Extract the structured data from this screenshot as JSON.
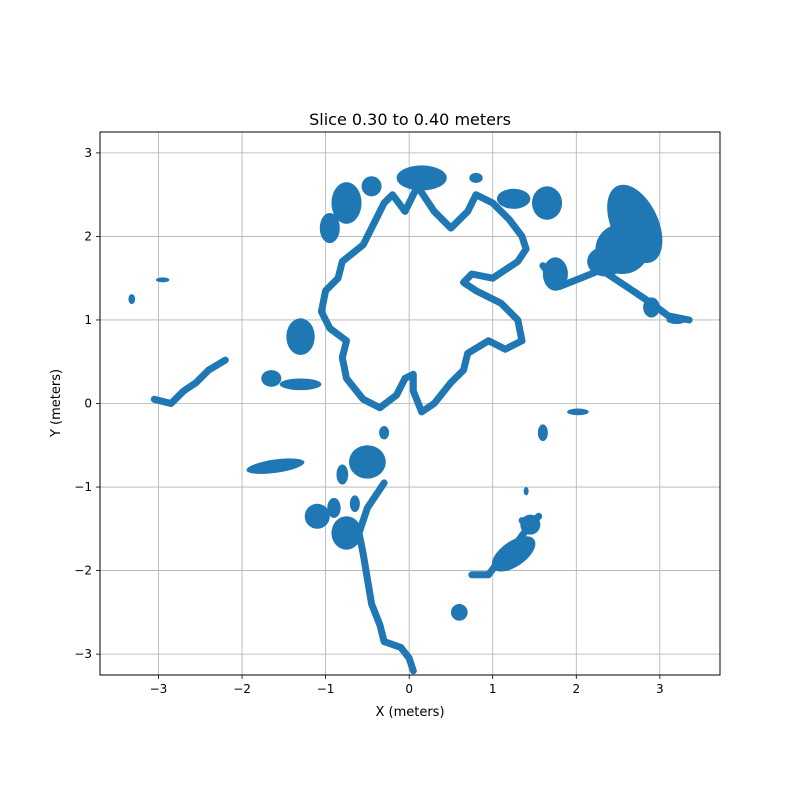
{
  "chart_data": {
    "type": "scatter",
    "title": "Slice 0.30 to 0.40 meters",
    "xlabel": "X (meters)",
    "ylabel": "Y (meters)",
    "xlim": [
      -3.7,
      3.72
    ],
    "ylim": [
      -3.25,
      3.25
    ],
    "xticks": [
      -3,
      -2,
      -1,
      0,
      1,
      2,
      3
    ],
    "yticks": [
      -3,
      -2,
      -1,
      0,
      1,
      2,
      3
    ],
    "grid": true,
    "color": "#1f77b4",
    "curves": [
      {
        "name": "inner-boundary",
        "closed": true,
        "points": [
          [
            -0.3,
            2.4
          ],
          [
            -0.2,
            2.5
          ],
          [
            -0.05,
            2.3
          ],
          [
            0.1,
            2.6
          ],
          [
            0.3,
            2.3
          ],
          [
            0.5,
            2.1
          ],
          [
            0.7,
            2.3
          ],
          [
            0.8,
            2.5
          ],
          [
            1.0,
            2.4
          ],
          [
            1.2,
            2.2
          ],
          [
            1.35,
            2.0
          ],
          [
            1.4,
            1.85
          ],
          [
            1.3,
            1.7
          ],
          [
            1.0,
            1.5
          ],
          [
            0.75,
            1.55
          ],
          [
            0.65,
            1.45
          ],
          [
            0.8,
            1.35
          ],
          [
            1.1,
            1.2
          ],
          [
            1.3,
            1.0
          ],
          [
            1.35,
            0.75
          ],
          [
            1.15,
            0.65
          ],
          [
            0.95,
            0.75
          ],
          [
            0.7,
            0.6
          ],
          [
            0.65,
            0.4
          ],
          [
            0.5,
            0.25
          ],
          [
            0.3,
            0.0
          ],
          [
            0.15,
            -0.1
          ],
          [
            0.05,
            0.15
          ],
          [
            0.05,
            0.35
          ],
          [
            -0.05,
            0.3
          ],
          [
            -0.15,
            0.1
          ],
          [
            -0.35,
            -0.05
          ],
          [
            -0.55,
            0.05
          ],
          [
            -0.75,
            0.3
          ],
          [
            -0.8,
            0.55
          ],
          [
            -0.75,
            0.75
          ],
          [
            -0.95,
            0.9
          ],
          [
            -1.05,
            1.1
          ],
          [
            -1.0,
            1.35
          ],
          [
            -0.85,
            1.5
          ],
          [
            -0.8,
            1.7
          ],
          [
            -0.55,
            1.9
          ],
          [
            -0.45,
            2.1
          ]
        ]
      },
      {
        "name": "south-trail",
        "closed": false,
        "points": [
          [
            -0.3,
            -0.95
          ],
          [
            -0.5,
            -1.25
          ],
          [
            -0.6,
            -1.55
          ],
          [
            -0.55,
            -1.8
          ],
          [
            -0.5,
            -2.1
          ],
          [
            -0.45,
            -2.4
          ],
          [
            -0.35,
            -2.65
          ],
          [
            -0.3,
            -2.85
          ],
          [
            -0.1,
            -2.92
          ],
          [
            0.0,
            -3.05
          ],
          [
            0.05,
            -3.2
          ]
        ]
      },
      {
        "name": "southeast-strip",
        "closed": false,
        "points": [
          [
            0.75,
            -2.05
          ],
          [
            0.95,
            -2.05
          ],
          [
            1.1,
            -1.85
          ],
          [
            1.3,
            -1.65
          ],
          [
            1.45,
            -1.45
          ],
          [
            1.55,
            -1.35
          ]
        ]
      },
      {
        "name": "west-strip",
        "closed": false,
        "points": [
          [
            -3.05,
            0.05
          ],
          [
            -2.85,
            0.0
          ],
          [
            -2.7,
            0.15
          ],
          [
            -2.55,
            0.25
          ],
          [
            -2.4,
            0.4
          ],
          [
            -2.2,
            0.52
          ]
        ]
      },
      {
        "name": "northeast-strip",
        "closed": false,
        "points": [
          [
            1.6,
            1.65
          ],
          [
            1.8,
            1.4
          ],
          [
            2.05,
            1.5
          ],
          [
            2.3,
            1.6
          ],
          [
            2.6,
            1.4
          ],
          [
            2.9,
            1.2
          ],
          [
            3.1,
            1.05
          ],
          [
            3.35,
            1.0
          ]
        ]
      }
    ],
    "blobs": [
      {
        "cx": 2.7,
        "cy": 2.15,
        "rx": 0.28,
        "ry": 0.5,
        "rot": -25
      },
      {
        "cx": 2.55,
        "cy": 1.85,
        "rx": 0.32,
        "ry": 0.3,
        "rot": 0
      },
      {
        "cx": 2.35,
        "cy": 1.7,
        "rx": 0.22,
        "ry": 0.18,
        "rot": 0
      },
      {
        "cx": 1.75,
        "cy": 1.55,
        "rx": 0.15,
        "ry": 0.2,
        "rot": 0
      },
      {
        "cx": 1.65,
        "cy": 2.4,
        "rx": 0.18,
        "ry": 0.2,
        "rot": 0
      },
      {
        "cx": 1.25,
        "cy": 2.45,
        "rx": 0.2,
        "ry": 0.12,
        "rot": 0
      },
      {
        "cx": 0.15,
        "cy": 2.7,
        "rx": 0.3,
        "ry": 0.15,
        "rot": 0
      },
      {
        "cx": -0.45,
        "cy": 2.6,
        "rx": 0.12,
        "ry": 0.12,
        "rot": 0
      },
      {
        "cx": -0.75,
        "cy": 2.4,
        "rx": 0.18,
        "ry": 0.25,
        "rot": 0
      },
      {
        "cx": -0.95,
        "cy": 2.1,
        "rx": 0.12,
        "ry": 0.18,
        "rot": 0
      },
      {
        "cx": -1.3,
        "cy": 0.8,
        "rx": 0.17,
        "ry": 0.22,
        "rot": 0
      },
      {
        "cx": -1.65,
        "cy": 0.3,
        "rx": 0.12,
        "ry": 0.1,
        "rot": 0
      },
      {
        "cx": -1.3,
        "cy": 0.23,
        "rx": 0.25,
        "ry": 0.07,
        "rot": 0
      },
      {
        "cx": -1.6,
        "cy": -0.75,
        "rx": 0.35,
        "ry": 0.08,
        "rot": -8
      },
      {
        "cx": -0.5,
        "cy": -0.7,
        "rx": 0.22,
        "ry": 0.2,
        "rot": 0
      },
      {
        "cx": -0.8,
        "cy": -0.85,
        "rx": 0.07,
        "ry": 0.12,
        "rot": 0
      },
      {
        "cx": -0.3,
        "cy": -0.35,
        "rx": 0.06,
        "ry": 0.08,
        "rot": 0
      },
      {
        "cx": -1.1,
        "cy": -1.35,
        "rx": 0.15,
        "ry": 0.15,
        "rot": 0
      },
      {
        "cx": -0.75,
        "cy": -1.55,
        "rx": 0.18,
        "ry": 0.2,
        "rot": 0
      },
      {
        "cx": -0.9,
        "cy": -1.25,
        "rx": 0.08,
        "ry": 0.12,
        "rot": 0
      },
      {
        "cx": -0.65,
        "cy": -1.2,
        "rx": 0.06,
        "ry": 0.1,
        "rot": 0
      },
      {
        "cx": 1.25,
        "cy": -1.8,
        "rx": 0.3,
        "ry": 0.15,
        "rot": -35
      },
      {
        "cx": 1.45,
        "cy": -1.45,
        "rx": 0.12,
        "ry": 0.12,
        "rot": 0
      },
      {
        "cx": 0.6,
        "cy": -2.5,
        "rx": 0.1,
        "ry": 0.1,
        "rot": 0
      },
      {
        "cx": 1.6,
        "cy": -0.35,
        "rx": 0.06,
        "ry": 0.1,
        "rot": 0
      },
      {
        "cx": 2.02,
        "cy": -0.1,
        "rx": 0.13,
        "ry": 0.04,
        "rot": 0
      },
      {
        "cx": 1.4,
        "cy": -1.05,
        "rx": 0.03,
        "ry": 0.05,
        "rot": 0
      },
      {
        "cx": 1.35,
        "cy": -1.4,
        "rx": 0.04,
        "ry": 0.04,
        "rot": 0
      },
      {
        "cx": -3.32,
        "cy": 1.25,
        "rx": 0.04,
        "ry": 0.06,
        "rot": 0
      },
      {
        "cx": -2.95,
        "cy": 1.48,
        "rx": 0.08,
        "ry": 0.03,
        "rot": 0
      },
      {
        "cx": 0.8,
        "cy": 2.7,
        "rx": 0.08,
        "ry": 0.06,
        "rot": 0
      },
      {
        "cx": 2.9,
        "cy": 1.15,
        "rx": 0.1,
        "ry": 0.12,
        "rot": 0
      },
      {
        "cx": 3.2,
        "cy": 1.0,
        "rx": 0.12,
        "ry": 0.05,
        "rot": 0
      }
    ]
  }
}
